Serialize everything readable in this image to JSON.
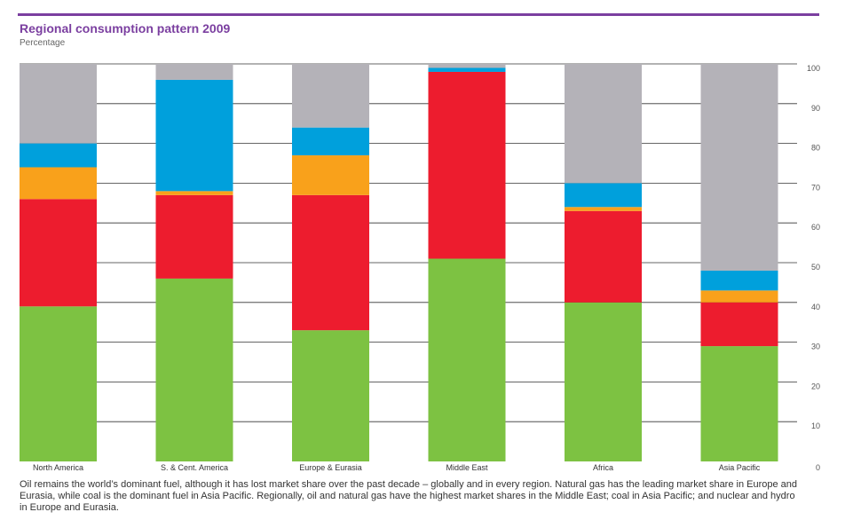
{
  "chart_data": {
    "type": "bar",
    "stacked": true,
    "title": "Regional consumption pattern 2009",
    "subtitle": "Percentage",
    "categories": [
      "North America",
      "S. & Cent. America",
      "Europe & Eurasia",
      "Middle East",
      "Africa",
      "Asia Pacific"
    ],
    "series": [
      {
        "color": "#7dc242",
        "values": [
          39,
          46,
          33,
          51,
          40,
          29
        ]
      },
      {
        "color": "#ed1c2e",
        "values": [
          27,
          21,
          34,
          47,
          23,
          11
        ]
      },
      {
        "color": "#f9a11b",
        "values": [
          8,
          1,
          10,
          0,
          1,
          3
        ]
      },
      {
        "color": "#00a0dc",
        "values": [
          6,
          28,
          7,
          1,
          6,
          5
        ]
      },
      {
        "color": "#b4b2b8",
        "values": [
          20,
          4,
          16,
          1,
          30,
          52
        ]
      }
    ],
    "ylim": [
      0,
      100
    ],
    "yticks": [
      0,
      10,
      20,
      30,
      40,
      50,
      60,
      70,
      80,
      90,
      100
    ],
    "y_axis_side": "right",
    "grid": true
  },
  "caption": "Oil remains the world’s dominant fuel, although it has lost market share over the past decade – globally and in every region. Natural gas has the leading market share in Europe and Eurasia, while coal is the dominant fuel in Asia Pacific. Regionally, oil and natural gas have the highest market shares in the Middle East; coal in Asia Pacific; and nuclear and hydro in Europe and Eurasia."
}
